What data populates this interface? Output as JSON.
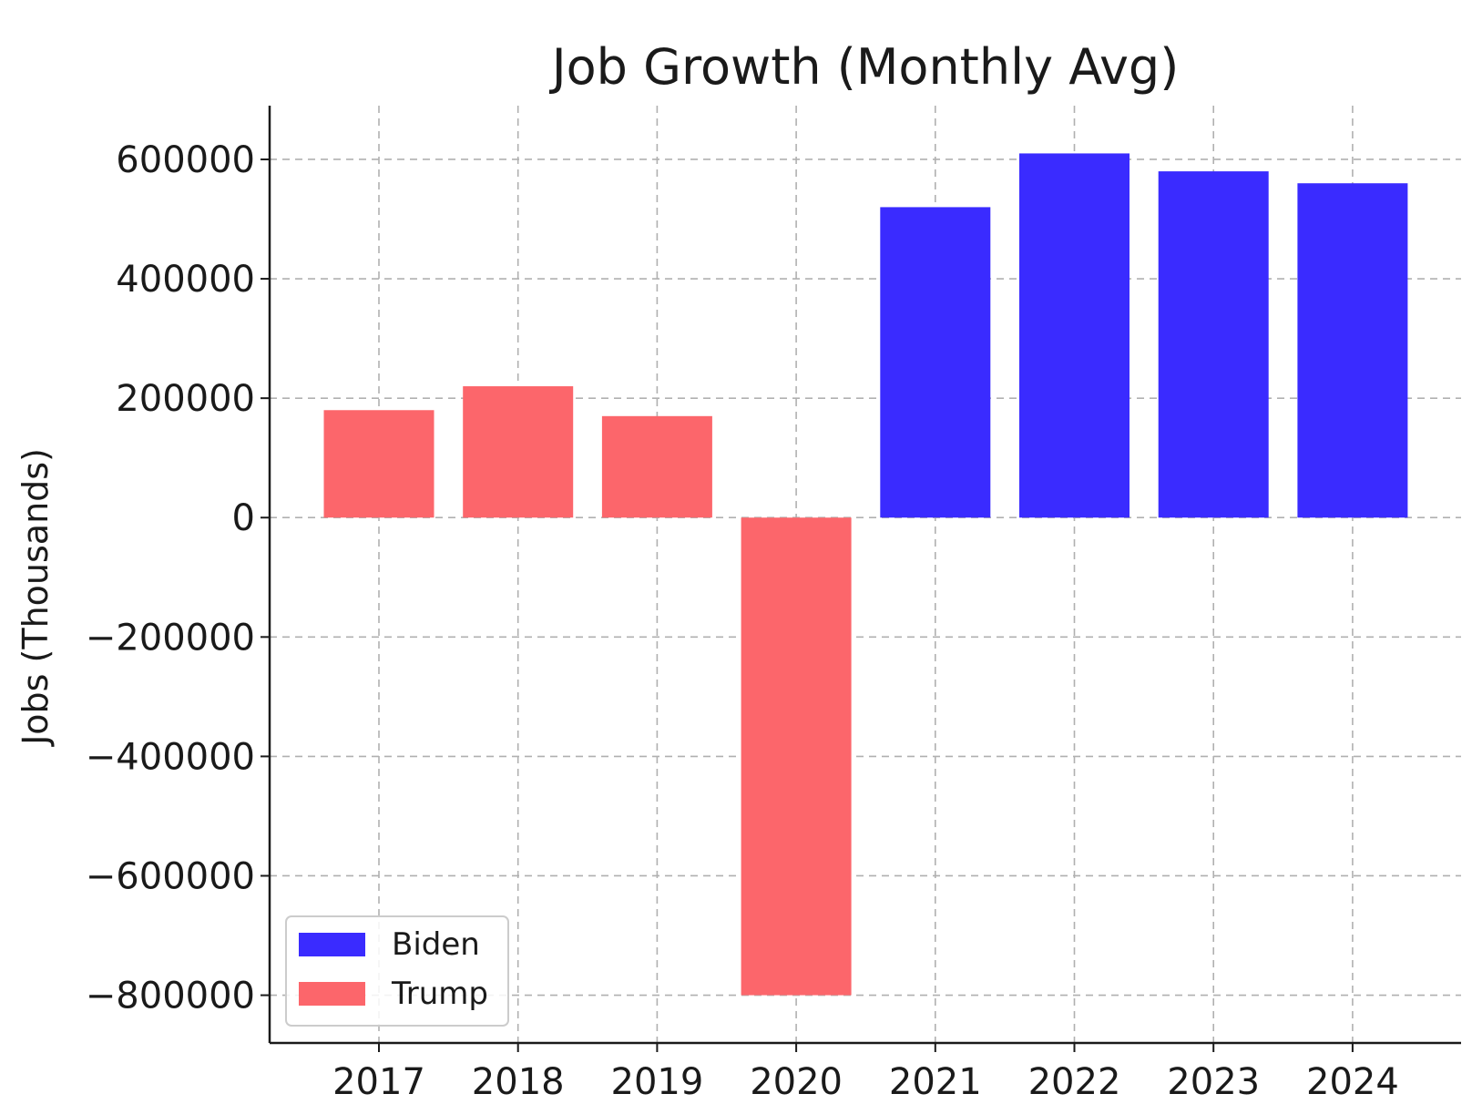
{
  "chart_data": {
    "type": "bar",
    "title": "Job Growth (Monthly Avg)",
    "xlabel": "",
    "ylabel": "Jobs (Thousands)",
    "ylim": [
      -880000,
      690000
    ],
    "yticks": [
      600000,
      400000,
      200000,
      0,
      -200000,
      -400000,
      -600000,
      -800000
    ],
    "ytick_labels": [
      "600000",
      "400000",
      "200000",
      "0",
      "−200000",
      "−400000",
      "−600000",
      "−800000"
    ],
    "categories": [
      "2017",
      "2018",
      "2019",
      "2020",
      "2021",
      "2022",
      "2023",
      "2024"
    ],
    "values": [
      180000,
      220000,
      170000,
      -800000,
      520000,
      610000,
      580000,
      560000
    ],
    "bar_series": [
      "Trump",
      "Trump",
      "Trump",
      "Trump",
      "Biden",
      "Biden",
      "Biden",
      "Biden"
    ],
    "series": [
      {
        "name": "Biden",
        "color": "#3a2bff"
      },
      {
        "name": "Trump",
        "color": "#fc666b"
      }
    ],
    "grid": true,
    "legend_position": "lower-left"
  }
}
